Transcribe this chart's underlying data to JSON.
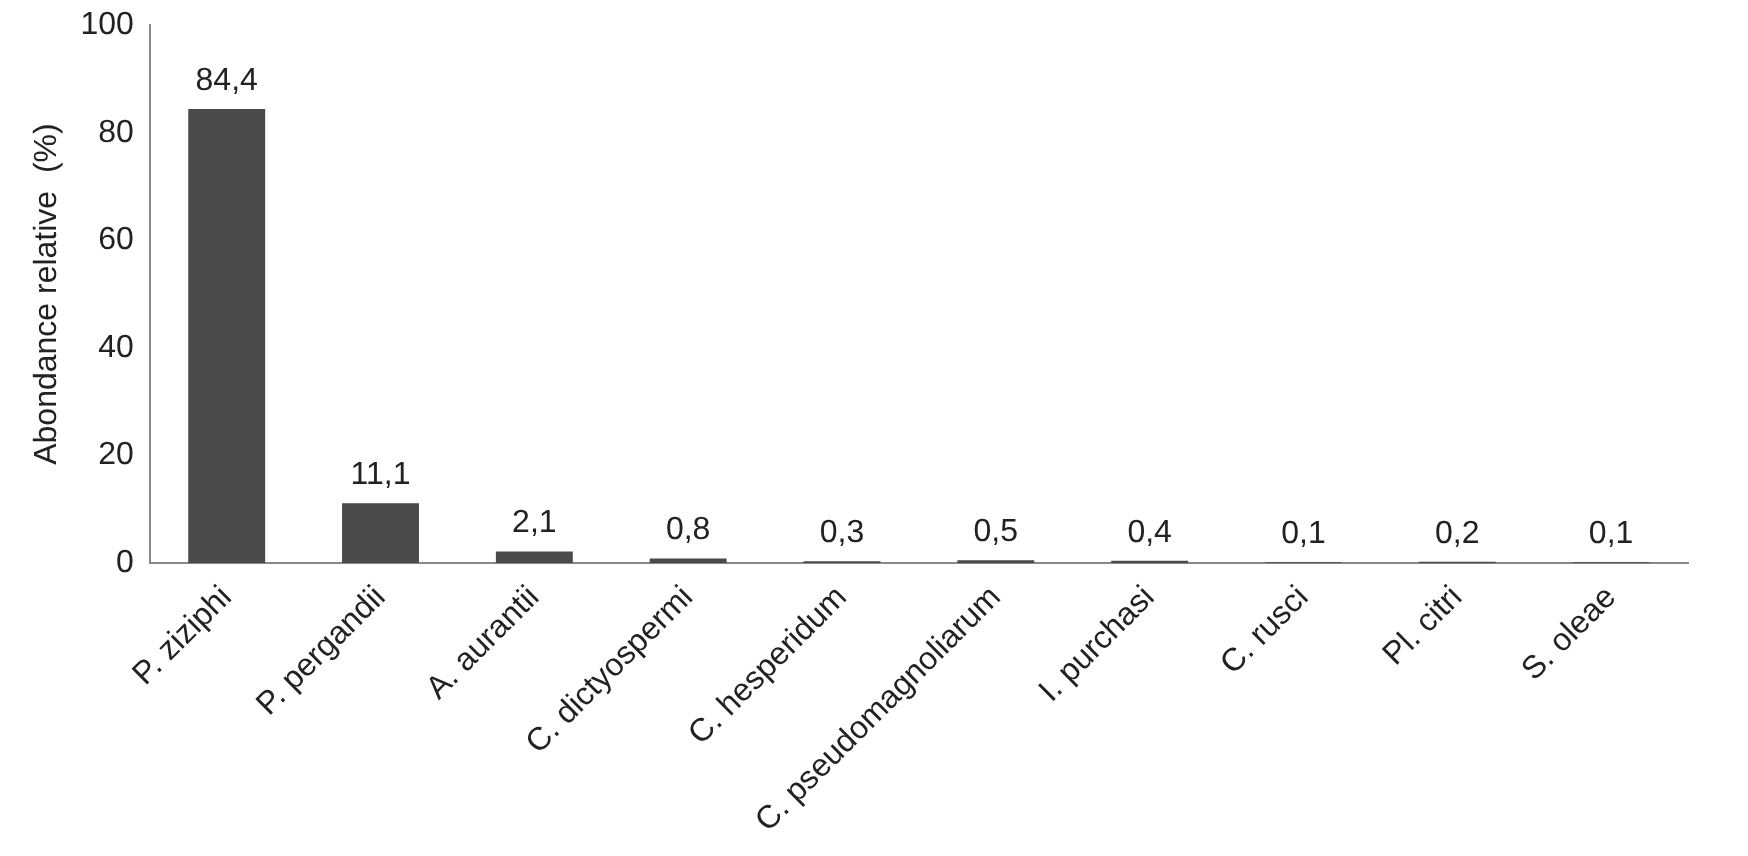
{
  "chart_data": {
    "type": "bar",
    "ylabel": "Abondance relative  (%)",
    "categories": [
      "P. ziziphi",
      "P. pergandii",
      "A. aurantii",
      "C. dictyospermi",
      "C. hesperidum",
      "C. pseudomagnoliarum",
      "I. purchasi",
      "C. rusci",
      "Pl. citri",
      "S. oleae"
    ],
    "values": [
      84.4,
      11.1,
      2.1,
      0.8,
      0.3,
      0.5,
      0.4,
      0.1,
      0.2,
      0.1
    ],
    "value_labels": [
      "84,4",
      "11,1",
      "2,1",
      "0,8",
      "0,3",
      "0,5",
      "0,4",
      "0,1",
      "0,2",
      "0,1"
    ],
    "color": "#4a4a4a",
    "ylim": [
      0,
      100
    ],
    "yticks": [
      0,
      20,
      40,
      60,
      80,
      100
    ],
    "grid": false,
    "legend": false
  }
}
